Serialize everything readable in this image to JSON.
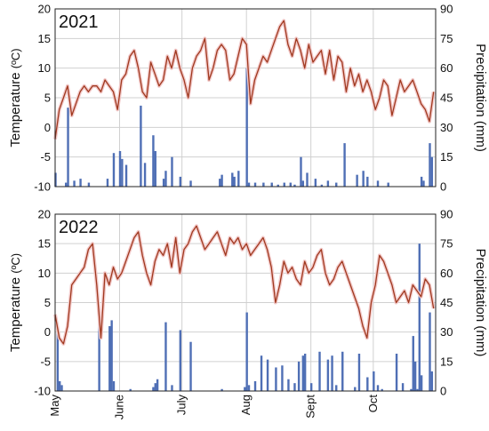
{
  "chart_data": [
    {
      "type": "combo",
      "title": "2021",
      "ylabel_left": "Temperature",
      "ylabel_left_unit": "(ºC)",
      "ylabel_right": "Precipitation (mm)",
      "ylim_left": [
        -10,
        20
      ],
      "yticks_left": [
        "-10",
        "-5",
        "0",
        "5",
        "10",
        "15",
        "20"
      ],
      "ylim_right": [
        0,
        90
      ],
      "yticks_right": [
        "0",
        "15",
        "30",
        "45",
        "60",
        "75",
        "90"
      ],
      "x_range_days": [
        0,
        183
      ],
      "month_ticks": [
        0,
        31,
        61,
        92,
        123,
        153,
        183
      ],
      "month_labels": [
        "May",
        "June",
        "July",
        "Aug",
        "Sept",
        "Oct"
      ],
      "grid": true,
      "colors": {
        "temperature": "#a0391f",
        "precipitation": "#4f6fb5",
        "grid": "#d0d0d0"
      },
      "series": [
        {
          "kind": "line",
          "x": [
            0,
            2,
            4,
            6,
            8,
            10,
            12,
            14,
            16,
            18,
            20,
            22,
            24,
            26,
            28,
            30,
            32,
            34,
            36,
            38,
            40,
            42,
            44,
            46,
            48,
            50,
            52,
            54,
            56,
            58,
            60,
            62,
            64,
            66,
            68,
            70,
            72,
            74,
            76,
            78,
            80,
            82,
            84,
            86,
            88,
            90,
            92,
            94,
            96,
            98,
            100,
            102,
            104,
            106,
            108,
            110,
            112,
            114,
            116,
            118,
            120,
            122,
            124,
            126,
            128,
            130,
            132,
            134,
            136,
            138,
            140,
            142,
            144,
            146,
            148,
            150,
            152,
            154,
            156,
            158,
            160,
            162,
            164,
            166,
            168,
            170,
            172,
            174,
            176,
            178,
            180,
            182
          ],
          "values": [
            -2,
            3,
            5,
            7,
            2,
            4,
            6,
            7,
            6,
            7,
            7,
            6,
            8,
            7,
            6,
            3,
            8,
            9,
            12,
            13,
            10,
            6,
            5,
            11,
            9,
            7,
            8,
            12,
            10,
            13,
            10,
            8,
            5,
            10,
            12,
            13,
            15,
            8,
            10,
            13,
            14,
            13,
            8,
            9,
            12,
            15,
            14,
            4,
            8,
            10,
            12,
            11,
            13,
            15,
            17,
            18,
            14,
            12,
            15,
            13,
            10,
            14,
            11,
            12,
            13,
            9,
            13,
            8,
            12,
            11,
            6,
            10,
            7,
            9,
            6,
            8,
            6,
            3,
            5,
            8,
            7,
            2,
            5,
            8,
            6,
            7,
            8,
            6,
            4,
            3,
            1,
            6
          ],
          "name": ""
        },
        {
          "kind": "bar",
          "x": [
            0,
            5,
            6,
            9,
            12,
            16,
            25,
            28,
            31,
            32,
            34,
            41,
            43,
            47,
            48,
            52,
            53,
            56,
            60,
            65,
            79,
            80,
            85,
            86,
            88,
            92,
            93,
            96,
            100,
            104,
            107,
            110,
            113,
            115,
            118,
            119,
            121,
            125,
            128,
            131,
            135,
            139,
            145,
            148,
            150,
            155,
            160,
            176,
            177,
            180,
            181
          ],
          "values": [
            7,
            2,
            40,
            3,
            4,
            2,
            4,
            17,
            18,
            14,
            11,
            41,
            12,
            26,
            18,
            4,
            8,
            15,
            5,
            3,
            4,
            6,
            7,
            5,
            8,
            60,
            2,
            2,
            2,
            2,
            1,
            2,
            2,
            1,
            15,
            3,
            7,
            4,
            1,
            3,
            2,
            22,
            6,
            8,
            5,
            3,
            2,
            5,
            3,
            22,
            15
          ],
          "name": ""
        }
      ]
    },
    {
      "type": "combo",
      "title": "2022",
      "ylabel_left": "Temperature",
      "ylabel_left_unit": "(ºC)",
      "ylabel_right": "Precipitation (mm)",
      "ylim_left": [
        -10,
        20
      ],
      "yticks_left": [
        "-10",
        "-5",
        "0",
        "5",
        "10",
        "15",
        "20"
      ],
      "ylim_right": [
        0,
        90
      ],
      "yticks_right": [
        "0",
        "15",
        "30",
        "45",
        "60",
        "75",
        "90"
      ],
      "x_range_days": [
        0,
        183
      ],
      "month_ticks": [
        0,
        31,
        61,
        92,
        123,
        153,
        183
      ],
      "month_labels": [
        "May",
        "June",
        "July",
        "Aug",
        "Sept",
        "Oct"
      ],
      "grid": true,
      "colors": {
        "temperature": "#a0391f",
        "precipitation": "#4f6fb5",
        "grid": "#d0d0d0"
      },
      "series": [
        {
          "kind": "line",
          "x": [
            0,
            2,
            4,
            6,
            8,
            10,
            12,
            14,
            16,
            18,
            20,
            22,
            24,
            26,
            28,
            30,
            32,
            34,
            36,
            38,
            40,
            42,
            44,
            46,
            48,
            50,
            52,
            54,
            56,
            58,
            60,
            62,
            64,
            66,
            68,
            70,
            72,
            74,
            76,
            78,
            80,
            82,
            84,
            86,
            88,
            90,
            92,
            94,
            96,
            98,
            100,
            102,
            104,
            106,
            108,
            110,
            112,
            114,
            116,
            118,
            120,
            122,
            124,
            126,
            128,
            130,
            132,
            134,
            136,
            138,
            140,
            142,
            144,
            146,
            148,
            150,
            152,
            154,
            156,
            158,
            160,
            162,
            164,
            166,
            168,
            170,
            172,
            174,
            176,
            178,
            180,
            182
          ],
          "values": [
            3,
            -1,
            -2,
            1,
            8,
            9,
            10,
            11,
            14,
            15,
            8,
            -1,
            10,
            8,
            11,
            9,
            10,
            12,
            14,
            16,
            17,
            13,
            10,
            8,
            12,
            14,
            13,
            15,
            11,
            16,
            10,
            14,
            15,
            17,
            18,
            16,
            14,
            15,
            16,
            17,
            15,
            13,
            16,
            15,
            16,
            14,
            15,
            13,
            14,
            15,
            16,
            14,
            11,
            5,
            8,
            12,
            10,
            11,
            9,
            8,
            12,
            10,
            11,
            13,
            14,
            10,
            8,
            9,
            11,
            12,
            10,
            8,
            6,
            4,
            1,
            -1,
            5,
            8,
            13,
            12,
            10,
            8,
            5,
            6,
            7,
            5,
            8,
            7,
            6,
            9,
            8,
            4
          ],
          "name": ""
        },
        {
          "kind": "bar",
          "x": [
            1,
            2,
            3,
            21,
            26,
            27,
            28,
            36,
            47,
            48,
            49,
            53,
            56,
            60,
            65,
            80,
            91,
            92,
            93,
            96,
            99,
            102,
            106,
            109,
            112,
            115,
            117,
            119,
            120,
            123,
            127,
            131,
            133,
            135,
            138,
            144,
            146,
            150,
            153,
            155,
            157,
            164,
            167,
            171,
            172,
            173,
            174,
            175,
            176,
            180,
            181
          ],
          "values": [
            30,
            5,
            3,
            38,
            33,
            36,
            5,
            1,
            2,
            4,
            6,
            35,
            3,
            31,
            25,
            1,
            2,
            40,
            3,
            5,
            18,
            16,
            12,
            13,
            6,
            4,
            15,
            18,
            19,
            4,
            20,
            16,
            18,
            3,
            20,
            2,
            19,
            7,
            10,
            3,
            1,
            19,
            4,
            1,
            28,
            15,
            1,
            75,
            8,
            40,
            10
          ],
          "name": ""
        }
      ]
    }
  ]
}
